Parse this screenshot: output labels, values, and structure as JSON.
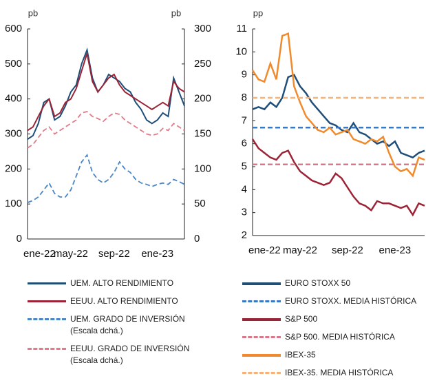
{
  "chart_data": [
    {
      "type": "line",
      "y_label": "pb",
      "y2_label": "pb",
      "categories": [
        "ene-22",
        null,
        null,
        null,
        null,
        null,
        null,
        null,
        "may-22",
        null,
        null,
        null,
        null,
        null,
        null,
        null,
        "sep-22",
        null,
        null,
        null,
        null,
        null,
        null,
        null,
        "ene-23",
        null,
        null,
        null,
        null,
        null
      ],
      "ylim": [
        0,
        600
      ],
      "yticks": [
        0,
        100,
        200,
        300,
        400,
        500,
        600
      ],
      "y2lim": [
        0,
        300
      ],
      "y2ticks": [
        0,
        50,
        100,
        150,
        200,
        250,
        300
      ],
      "series": [
        {
          "name": "UEM. ALTO RENDIMIENTO",
          "color": "#1f4e79",
          "line_style": "solid",
          "values": [
            285,
            295,
            330,
            390,
            400,
            340,
            350,
            380,
            420,
            440,
            500,
            540,
            460,
            420,
            440,
            470,
            460,
            450,
            430,
            420,
            390,
            370,
            340,
            330,
            340,
            360,
            350,
            460,
            420,
            380
          ]
        },
        {
          "name": "EEUU. ALTO RENDIMIENTO",
          "color": "#9b2335",
          "line_style": "solid",
          "values": [
            310,
            320,
            350,
            380,
            400,
            350,
            360,
            390,
            400,
            430,
            480,
            530,
            450,
            420,
            440,
            460,
            470,
            440,
            420,
            410,
            400,
            390,
            380,
            370,
            380,
            390,
            380,
            450,
            430,
            420
          ]
        },
        {
          "name": "UEM. GRADO DE INVERSIÓN\n(Escala dchá.)",
          "color": "#4a86c5",
          "line_style": "dashed",
          "axis": "y2",
          "values": [
            52,
            55,
            60,
            70,
            80,
            65,
            60,
            60,
            70,
            90,
            110,
            120,
            95,
            85,
            80,
            85,
            95,
            110,
            100,
            95,
            85,
            80,
            78,
            75,
            78,
            80,
            78,
            85,
            82,
            78
          ]
        },
        {
          "name": "EEUU. GRADO DE INVERSIÓN\n(Escala dchá.)",
          "color": "#e07b8a",
          "line_style": "dashed",
          "axis": "y2",
          "values": [
            130,
            135,
            145,
            155,
            160,
            150,
            155,
            160,
            165,
            170,
            180,
            182,
            175,
            172,
            168,
            175,
            180,
            178,
            170,
            165,
            160,
            155,
            150,
            148,
            150,
            158,
            155,
            165,
            160,
            155
          ]
        }
      ]
    },
    {
      "type": "line",
      "y_label": "pp",
      "categories": [
        "ene-22",
        null,
        null,
        null,
        null,
        null,
        null,
        null,
        "may-22",
        null,
        null,
        null,
        null,
        null,
        null,
        null,
        "sep-22",
        null,
        null,
        null,
        null,
        null,
        null,
        null,
        "ene-23",
        null,
        null,
        null,
        null,
        null
      ],
      "ylim": [
        2,
        11
      ],
      "yticks": [
        2,
        3,
        4,
        5,
        6,
        7,
        8,
        9,
        10,
        11
      ],
      "series": [
        {
          "name": "EURO STOXX 50",
          "color": "#1f4e79",
          "line_style": "solid",
          "values": [
            7.5,
            7.6,
            7.5,
            7.8,
            7.6,
            8.0,
            8.9,
            9.0,
            8.5,
            8.2,
            7.8,
            7.5,
            7.2,
            6.9,
            6.8,
            6.6,
            6.5,
            6.9,
            6.5,
            6.4,
            6.2,
            6.0,
            6.1,
            5.9,
            6.1,
            5.6,
            5.5,
            5.4,
            5.6,
            5.7
          ]
        },
        {
          "name": "EURO STOXX. MEDIA HISTÓRICA",
          "color": "#3a78c4",
          "line_style": "dashed",
          "values": [
            6.7,
            6.7,
            6.7,
            6.7,
            6.7,
            6.7,
            6.7,
            6.7,
            6.7,
            6.7,
            6.7,
            6.7,
            6.7,
            6.7,
            6.7,
            6.7,
            6.7,
            6.7,
            6.7,
            6.7,
            6.7,
            6.7,
            6.7,
            6.7,
            6.7,
            6.7,
            6.7,
            6.7,
            6.7,
            6.7
          ]
        },
        {
          "name": "S&P 500",
          "color": "#9b2335",
          "line_style": "solid",
          "values": [
            6.2,
            5.8,
            5.6,
            5.4,
            5.3,
            5.6,
            5.7,
            5.2,
            4.8,
            4.6,
            4.4,
            4.3,
            4.2,
            4.3,
            4.7,
            4.5,
            4.1,
            3.7,
            3.4,
            3.3,
            3.1,
            3.5,
            3.4,
            3.4,
            3.3,
            3.2,
            3.3,
            2.9,
            3.4,
            3.3
          ]
        },
        {
          "name": "S&P 500. MEDIA HISTÓRICA",
          "color": "#d9788a",
          "line_style": "dashed",
          "values": [
            5.1,
            5.1,
            5.1,
            5.1,
            5.1,
            5.1,
            5.1,
            5.1,
            5.1,
            5.1,
            5.1,
            5.1,
            5.1,
            5.1,
            5.1,
            5.1,
            5.1,
            5.1,
            5.1,
            5.1,
            5.1,
            5.1,
            5.1,
            5.1,
            5.1,
            5.1,
            5.1,
            5.1,
            5.1,
            5.1
          ]
        },
        {
          "name": "IBEX-35",
          "color": "#f08a2c",
          "line_style": "solid",
          "values": [
            9.2,
            8.8,
            8.7,
            9.5,
            8.8,
            10.7,
            10.8,
            8.5,
            7.8,
            7.2,
            6.9,
            6.6,
            6.5,
            6.7,
            6.4,
            6.5,
            6.6,
            6.2,
            6.1,
            6.0,
            6.2,
            6.1,
            6.3,
            5.6,
            5.0,
            4.8,
            4.9,
            4.6,
            5.4,
            5.3
          ]
        },
        {
          "name": "IBEX-35. MEDIA HISTÓRICA",
          "color": "#f7b27a",
          "line_style": "dashed",
          "values": [
            8.0,
            8.0,
            8.0,
            8.0,
            8.0,
            8.0,
            8.0,
            8.0,
            8.0,
            8.0,
            8.0,
            8.0,
            8.0,
            8.0,
            8.0,
            8.0,
            8.0,
            8.0,
            8.0,
            8.0,
            8.0,
            8.0,
            8.0,
            8.0,
            8.0,
            8.0,
            8.0,
            8.0,
            8.0,
            8.0
          ]
        }
      ]
    }
  ]
}
